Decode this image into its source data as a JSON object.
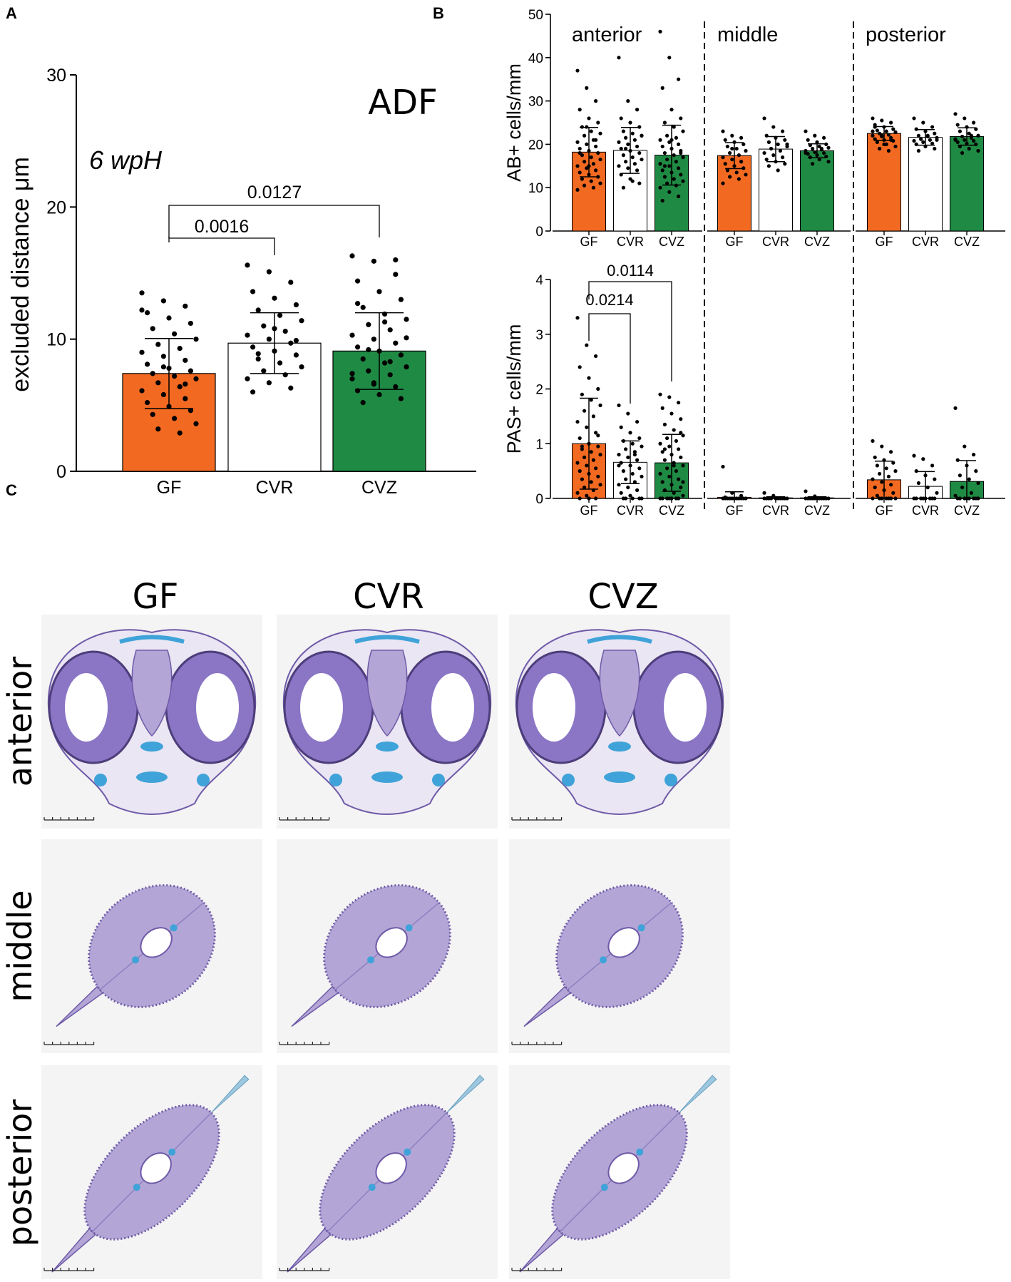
{
  "figure": {
    "panel_labels": [
      "A",
      "B",
      "C"
    ]
  },
  "colors": {
    "GF": "#f26a21",
    "CVR": "#ffffff",
    "CVZ": "#1f8a43",
    "stroke": "#000000"
  },
  "chart_data": [
    {
      "id": "A",
      "type": "bar",
      "title": "ADF",
      "subtitle": "6 wpH",
      "xlabel": "",
      "ylabel": "excluded distance μm",
      "categories": [
        "GF",
        "CVR",
        "CVZ"
      ],
      "values": [
        7.4,
        9.7,
        9.1
      ],
      "sd": [
        2.65,
        2.3,
        2.9
      ],
      "ylim": [
        0,
        30
      ],
      "yticks": [
        "0",
        "10",
        "20",
        "30"
      ],
      "comparisons": [
        {
          "from": "GF",
          "to": "CVR",
          "p": "0.0016"
        },
        {
          "from": "GF",
          "to": "CVZ",
          "p": "0.0127"
        }
      ],
      "points": {
        "GF": [
          13.5,
          12.9,
          12.5,
          12.0,
          11.6,
          11.2,
          10.8,
          10.4,
          10.0,
          9.6,
          9.3,
          9.0,
          8.7,
          8.4,
          8.1,
          7.8,
          7.6,
          7.4,
          7.2,
          7.0,
          6.7,
          6.4,
          6.1,
          5.8,
          5.5,
          5.2,
          4.9,
          4.6,
          4.3,
          4.0,
          3.6,
          3.2,
          2.9,
          12.2,
          7.9,
          6.6
        ],
        "CVR": [
          15.6,
          15.1,
          14.3,
          13.6,
          13.1,
          12.6,
          12.2,
          11.8,
          11.4,
          11.0,
          10.6,
          10.3,
          10.0,
          9.7,
          9.4,
          9.1,
          8.8,
          8.5,
          8.2,
          7.9,
          7.6,
          7.3,
          7.0,
          6.7,
          6.3,
          6.0,
          10.8,
          9.9,
          8.9
        ],
        "CVZ": [
          16.3,
          15.9,
          14.9,
          14.4,
          13.6,
          13.0,
          12.4,
          11.9,
          11.5,
          11.1,
          10.7,
          10.3,
          10.0,
          9.7,
          9.4,
          9.1,
          8.8,
          8.5,
          8.2,
          7.9,
          7.6,
          7.3,
          7.0,
          6.7,
          6.4,
          6.1,
          5.8,
          5.5,
          5.2,
          11.3,
          10.1,
          9.2,
          8.3,
          7.4,
          6.6,
          16.0,
          12.7
        ]
      }
    },
    {
      "id": "B-top",
      "type": "bar",
      "title": "",
      "xlabel": "",
      "ylabel": "AB+ cells/mm",
      "ylim": [
        0,
        50
      ],
      "yticks": [
        "0",
        "10",
        "20",
        "30",
        "40",
        "50"
      ],
      "regions": [
        "anterior",
        "middle",
        "posterior"
      ],
      "categories": [
        "GF",
        "CVR",
        "CVZ"
      ],
      "series": [
        {
          "name": "anterior",
          "values": [
            18.2,
            18.6,
            17.5
          ],
          "sd": [
            5.7,
            5.3,
            6.9
          ]
        },
        {
          "name": "middle",
          "values": [
            17.4,
            18.9,
            18.5
          ],
          "sd": [
            3.0,
            2.9,
            1.6
          ]
        },
        {
          "name": "posterior",
          "values": [
            22.5,
            21.6,
            21.8
          ],
          "sd": [
            1.6,
            1.8,
            2.0
          ]
        }
      ],
      "points": {
        "anterior": {
          "GF": [
            37,
            33,
            30,
            28,
            26,
            25,
            24,
            23,
            22.5,
            22,
            21,
            20.5,
            20,
            19.5,
            19,
            18.5,
            18,
            17.5,
            17,
            16.5,
            16,
            15.5,
            15,
            14.5,
            14,
            13.5,
            13,
            12.5,
            12,
            11.5,
            11,
            10.5,
            10,
            9.5,
            24,
            21,
            18,
            15
          ],
          "CVR": [
            40,
            30,
            28,
            26,
            25,
            24,
            23,
            22.5,
            22,
            21.5,
            21,
            20.5,
            20,
            19.5,
            19,
            18.5,
            18,
            17.5,
            17,
            16.5,
            16,
            15.5,
            15,
            14.5,
            14,
            13,
            12,
            11,
            10,
            11.5,
            22,
            19
          ],
          "CVZ": [
            46,
            40,
            35,
            33,
            28,
            26,
            25,
            24,
            23,
            22,
            21.5,
            21,
            20.5,
            20,
            19.5,
            19,
            18.5,
            18,
            17.5,
            17,
            16.5,
            16,
            15.5,
            15,
            14.5,
            14,
            13.5,
            13,
            12.5,
            12,
            11.5,
            11,
            10.5,
            10,
            9,
            8,
            7,
            21,
            18,
            15,
            12
          ]
        },
        "middle": {
          "GF": [
            23,
            22,
            21.5,
            21,
            20.5,
            20,
            19.5,
            19,
            18.5,
            18,
            17.5,
            17,
            16.5,
            16,
            15.5,
            15,
            14.5,
            14,
            13.5,
            13,
            12.5,
            12,
            11,
            19,
            16
          ],
          "CVR": [
            26,
            24,
            23,
            22,
            21.5,
            21,
            20.5,
            20,
            19.5,
            19,
            18.5,
            18,
            17.5,
            17,
            16.5,
            16,
            15.5,
            15,
            14,
            20
          ],
          "CVZ": [
            23,
            22,
            21.5,
            21,
            20.5,
            20,
            19.8,
            19.5,
            19.2,
            19,
            18.8,
            18.5,
            18.2,
            18,
            17.8,
            17.5,
            17.2,
            17,
            16.5,
            16,
            15.5,
            19,
            18
          ]
        },
        "posterior": {
          "GF": [
            26,
            25.5,
            25,
            24.5,
            24,
            23.5,
            23.2,
            23,
            22.8,
            22.5,
            22.2,
            22,
            21.8,
            21.5,
            21.2,
            21,
            20.8,
            20.5,
            20,
            19.5,
            19,
            18.5,
            23,
            22,
            21,
            24,
            20
          ],
          "CVR": [
            26,
            25,
            24,
            23.5,
            23,
            22.5,
            22,
            21.8,
            21.5,
            21.2,
            21,
            20.8,
            20.5,
            20.2,
            20,
            19.5,
            19,
            18.5,
            22,
            21
          ],
          "CVZ": [
            27,
            26,
            25,
            24.5,
            24,
            23.5,
            23,
            22.5,
            22,
            21.8,
            21.5,
            21.2,
            21,
            20.8,
            20.5,
            20.2,
            20,
            19.5,
            19,
            18.5,
            18,
            22,
            21
          ]
        }
      }
    },
    {
      "id": "B-bottom",
      "type": "bar",
      "title": "",
      "xlabel": "",
      "ylabel": "PAS+ cells/mm",
      "ylim": [
        0,
        4
      ],
      "yticks": [
        "0",
        "1",
        "2",
        "3",
        "4"
      ],
      "regions": [
        "anterior",
        "middle",
        "posterior"
      ],
      "categories": [
        "GF",
        "CVR",
        "CVZ"
      ],
      "series": [
        {
          "name": "anterior",
          "values": [
            1.0,
            0.66,
            0.65
          ],
          "sd": [
            0.83,
            0.39,
            0.52
          ]
        },
        {
          "name": "middle",
          "values": [
            0.02,
            0.01,
            0.01
          ],
          "sd": [
            0.1,
            0.02,
            0.02
          ]
        },
        {
          "name": "posterior",
          "values": [
            0.34,
            0.22,
            0.31
          ],
          "sd": [
            0.34,
            0.27,
            0.38
          ]
        }
      ],
      "comparisons": [
        {
          "region": "anterior",
          "from": "GF",
          "to": "CVR",
          "p": "0.0214"
        },
        {
          "region": "anterior",
          "from": "GF",
          "to": "CVZ",
          "p": "0.0114"
        }
      ],
      "points": {
        "anterior": {
          "GF": [
            3.3,
            2.8,
            2.6,
            2.4,
            2.2,
            2.0,
            1.9,
            1.8,
            1.7,
            1.6,
            1.5,
            1.4,
            1.3,
            1.2,
            1.1,
            1.0,
            0.95,
            0.9,
            0.85,
            0.8,
            0.75,
            0.7,
            0.65,
            0.6,
            0.55,
            0.5,
            0.45,
            0.4,
            0.35,
            0.3,
            0.25,
            0.2,
            0.15,
            0.1,
            0.05,
            0.0,
            0.0,
            0.0,
            1.15,
            0.95
          ],
          "CVR": [
            1.7,
            1.55,
            1.4,
            1.3,
            1.2,
            1.1,
            1.05,
            1.0,
            0.95,
            0.9,
            0.85,
            0.8,
            0.75,
            0.7,
            0.65,
            0.6,
            0.55,
            0.5,
            0.45,
            0.4,
            0.35,
            0.3,
            0.25,
            0.2,
            0.15,
            0.1,
            0.05,
            0.0,
            0.0,
            0.0,
            0.0,
            0.0,
            0.8,
            0.6
          ],
          "CVZ": [
            1.9,
            1.85,
            1.75,
            1.65,
            1.55,
            1.45,
            1.35,
            1.25,
            1.15,
            1.1,
            1.05,
            1.0,
            0.95,
            0.9,
            0.85,
            0.8,
            0.75,
            0.7,
            0.65,
            0.6,
            0.55,
            0.5,
            0.45,
            0.4,
            0.35,
            0.3,
            0.25,
            0.2,
            0.15,
            0.1,
            0.05,
            0.0,
            0.0,
            0.0,
            0.0,
            0.0,
            0.0,
            0.0,
            1.2,
            0.9,
            0.6,
            0.3
          ]
        },
        "middle": {
          "GF": [
            0.58,
            0.1,
            0.05,
            0.02,
            0.0,
            0.0,
            0.0,
            0.0,
            0.0,
            0.0,
            0.0,
            0.0,
            0.0,
            0.0,
            0.0,
            0.0
          ],
          "CVR": [
            0.1,
            0.05,
            0.0,
            0.0,
            0.0,
            0.0,
            0.0,
            0.0,
            0.0,
            0.0,
            0.0,
            0.0
          ],
          "CVZ": [
            0.13,
            0.04,
            0.0,
            0.0,
            0.0,
            0.0,
            0.0,
            0.0,
            0.0,
            0.0,
            0.0,
            0.0,
            0.0,
            0.0
          ]
        },
        "posterior": {
          "GF": [
            1.05,
            0.95,
            0.85,
            0.75,
            0.7,
            0.65,
            0.6,
            0.55,
            0.5,
            0.45,
            0.4,
            0.35,
            0.3,
            0.25,
            0.2,
            0.15,
            0.1,
            0.05,
            0.0,
            0.0,
            0.0,
            0.0,
            0.0,
            0.0,
            0.0
          ],
          "CVR": [
            0.78,
            0.72,
            0.6,
            0.5,
            0.42,
            0.35,
            0.28,
            0.2,
            0.1,
            0.0,
            0.0,
            0.0,
            0.0,
            0.0,
            0.0,
            0.0,
            0.0
          ],
          "CVZ": [
            1.65,
            0.95,
            0.8,
            0.7,
            0.6,
            0.5,
            0.42,
            0.35,
            0.28,
            0.2,
            0.1,
            0.05,
            0.0,
            0.0,
            0.0,
            0.0,
            0.0,
            0.0,
            0.0,
            0.0
          ]
        }
      }
    }
  ],
  "histology": {
    "columns": [
      "GF",
      "CVR",
      "CVZ"
    ],
    "rows": [
      "anterior",
      "middle",
      "posterior"
    ],
    "stain_colors": {
      "tissue": "#b3a6d6",
      "tissue_dark": "#6f5aa8",
      "alcian": "#3fa3d9",
      "eye": "#8a76c4"
    }
  }
}
